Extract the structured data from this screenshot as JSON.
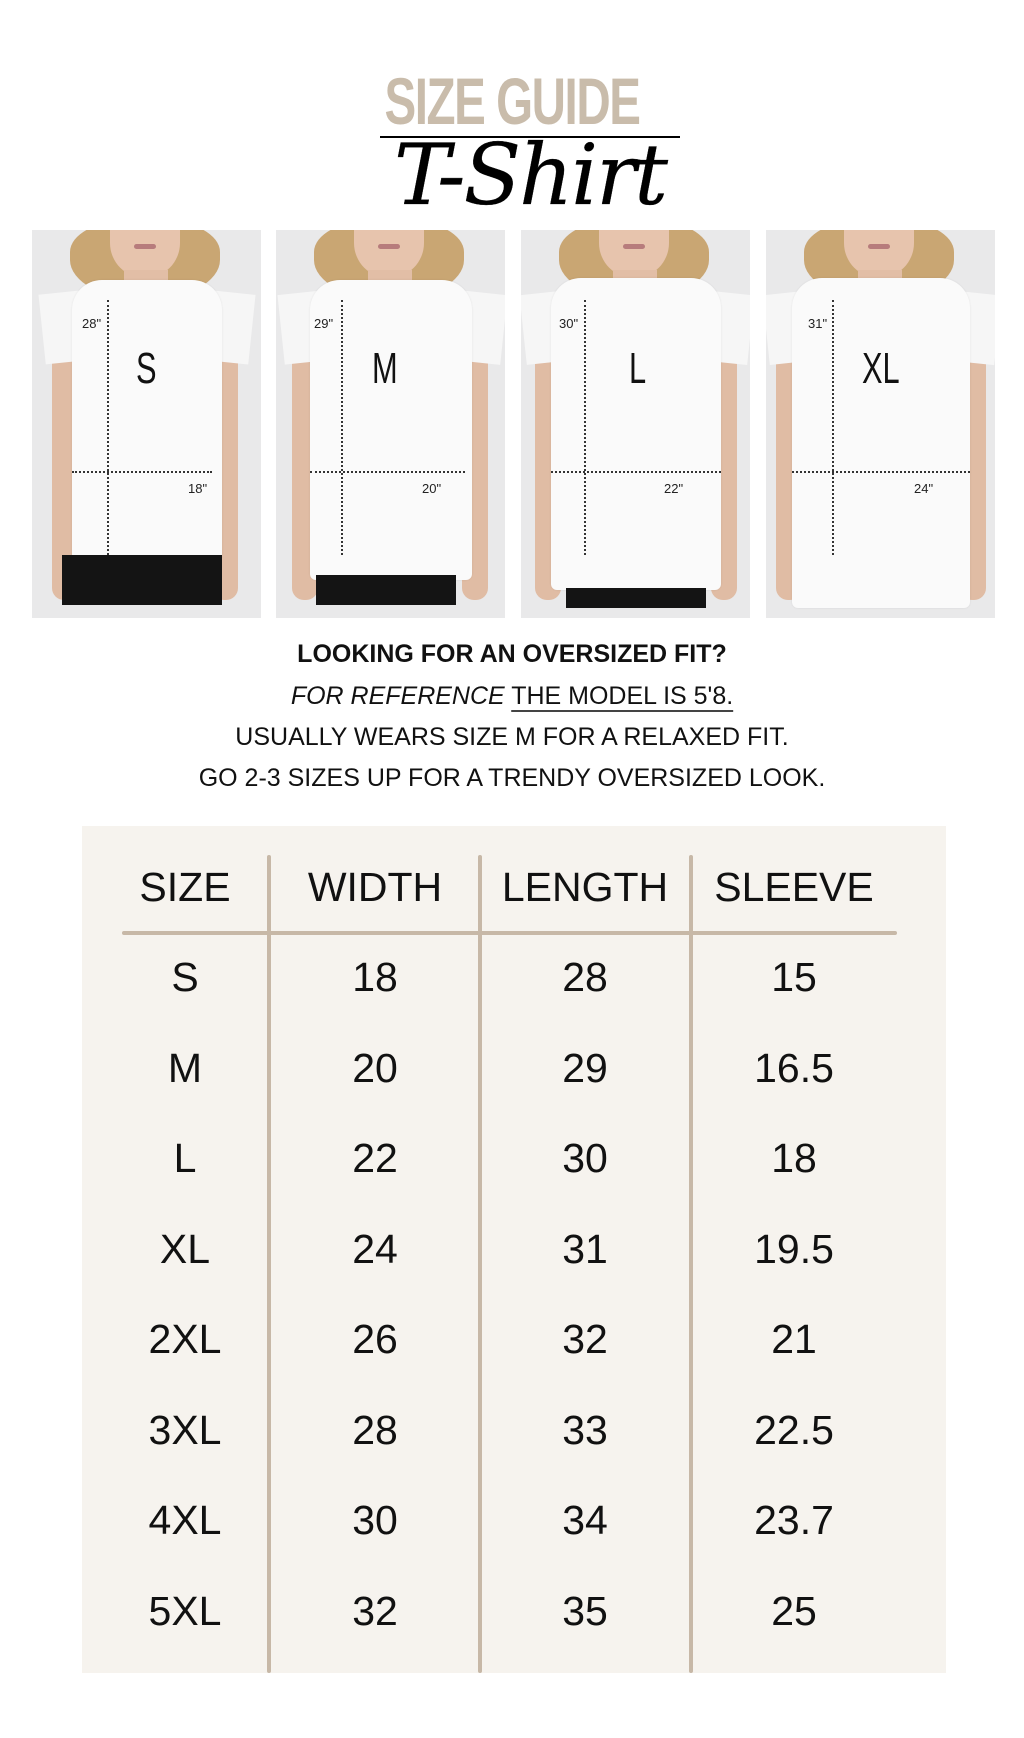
{
  "header": {
    "title": "SIZE GUIDE",
    "script_title": "T-Shirt"
  },
  "photos": [
    {
      "size": "S",
      "length": "28\"",
      "width": "18\""
    },
    {
      "size": "M",
      "length": "29\"",
      "width": "20\""
    },
    {
      "size": "L",
      "length": "30\"",
      "width": "22\""
    },
    {
      "size": "XL",
      "length": "31\"",
      "width": "24\""
    }
  ],
  "notes": {
    "heading": "LOOKING FOR AN OVERSIZED FIT?",
    "reference_italic": "FOR REFERENCE",
    "reference_underlined": "THE MODEL IS 5'8.",
    "line2": "USUALLY WEARS SIZE M FOR A RELAXED FIT.",
    "line3": "GO 2-3 SIZES UP FOR A TRENDY OVERSIZED LOOK."
  },
  "table": {
    "headers": [
      "SIZE",
      "WIDTH",
      "LENGTH",
      "SLEEVE"
    ],
    "rows": [
      [
        "S",
        "18",
        "28",
        "15"
      ],
      [
        "M",
        "20",
        "29",
        "16.5"
      ],
      [
        "L",
        "22",
        "30",
        "18"
      ],
      [
        "XL",
        "24",
        "31",
        "19.5"
      ],
      [
        "2XL",
        "26",
        "32",
        "21"
      ],
      [
        "3XL",
        "28",
        "33",
        "22.5"
      ],
      [
        "4XL",
        "30",
        "34",
        "23.7"
      ],
      [
        "5XL",
        "32",
        "35",
        "25"
      ]
    ]
  },
  "colors": {
    "title": "#c9bcab",
    "table_bg": "#f6f3ee",
    "divider": "#c7b8a7"
  }
}
